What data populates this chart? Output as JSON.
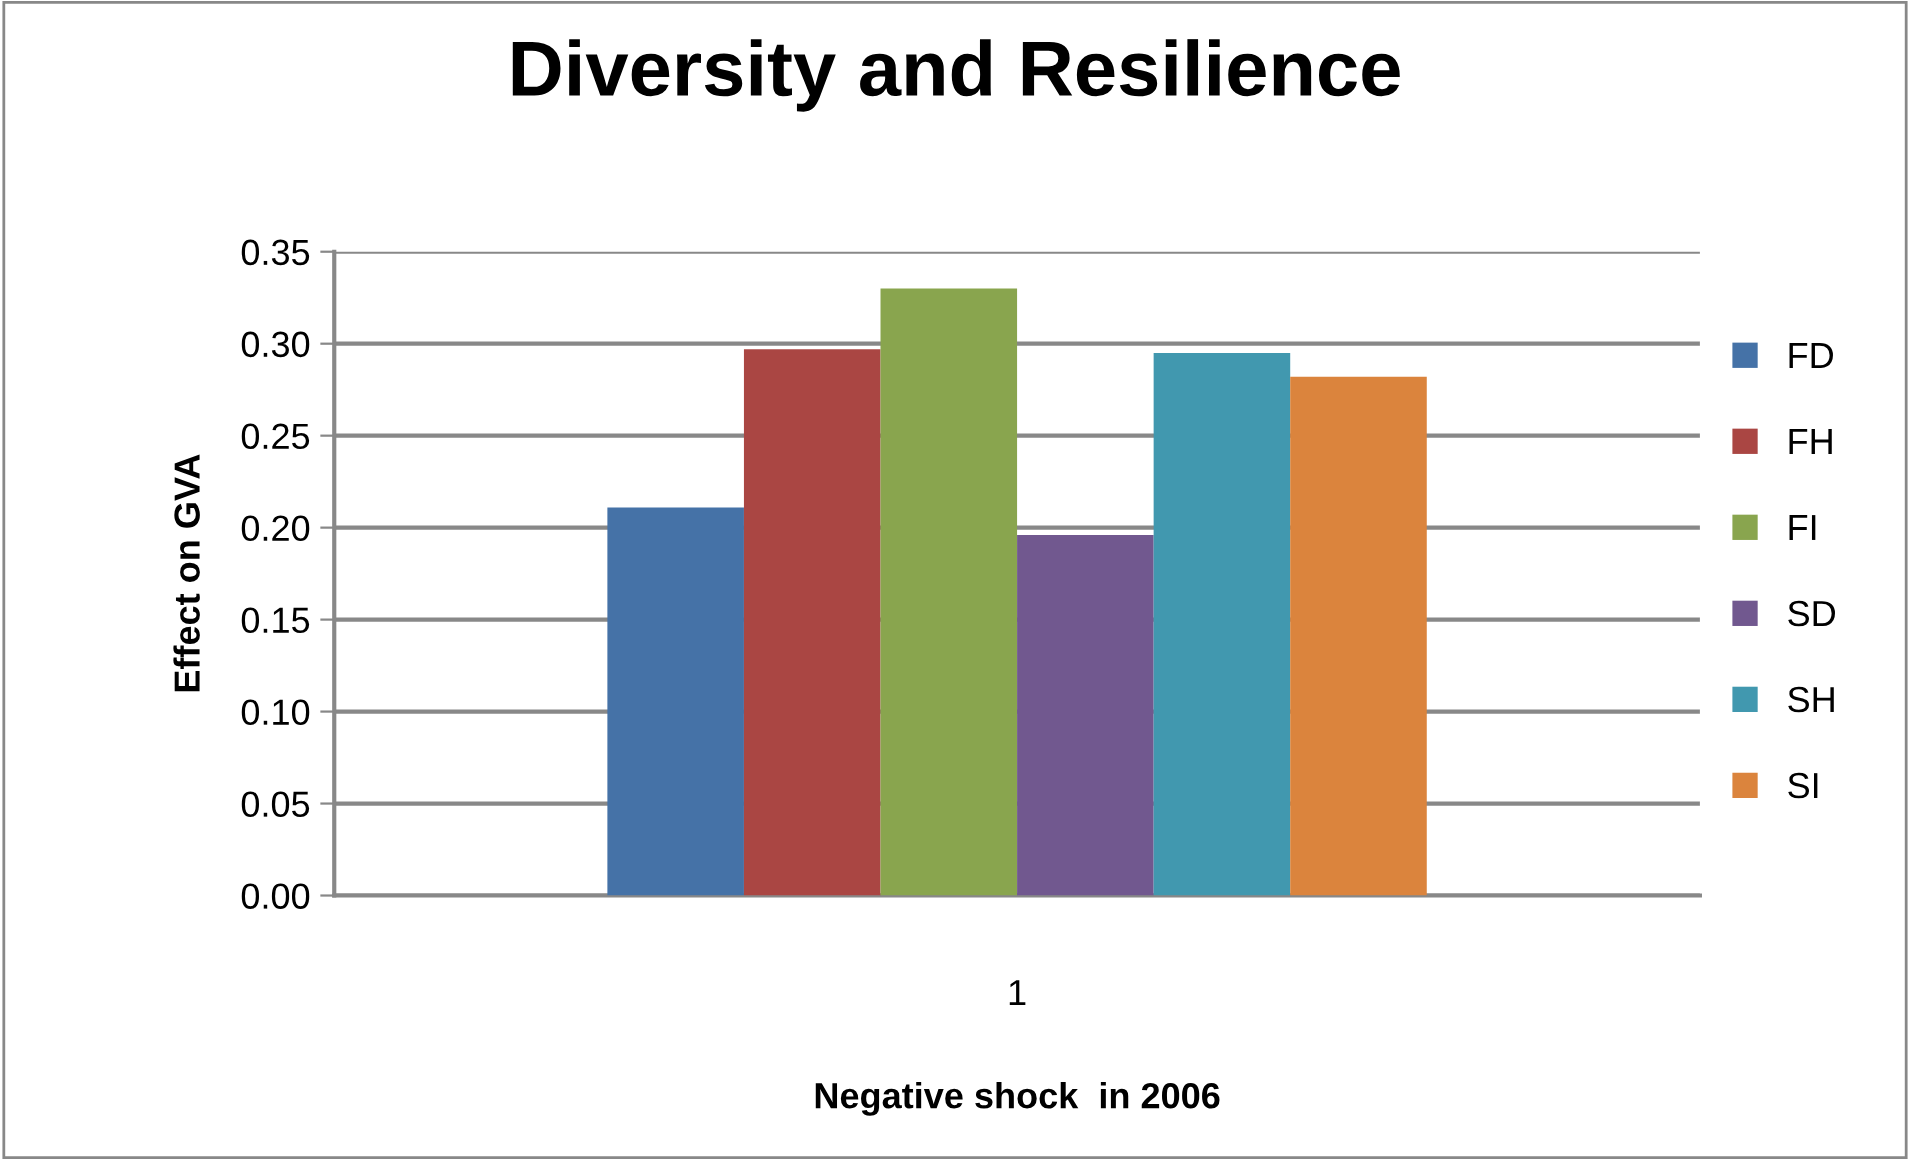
{
  "chart_data": {
    "type": "bar",
    "title": "Diversity and Resilience",
    "xlabel": "Negative shock  in 2006",
    "ylabel": "Effect on GVA",
    "categories": [
      "1"
    ],
    "series": [
      {
        "name": "FD",
        "color": "#4572a7",
        "values": [
          0.211
        ]
      },
      {
        "name": "FH",
        "color": "#aa4643",
        "values": [
          0.297
        ]
      },
      {
        "name": "FI",
        "color": "#89a54e",
        "values": [
          0.33
        ]
      },
      {
        "name": "SD",
        "color": "#71588f",
        "values": [
          0.196
        ]
      },
      {
        "name": "SH",
        "color": "#4198af",
        "values": [
          0.295
        ]
      },
      {
        "name": "SI",
        "color": "#db843d",
        "values": [
          0.282
        ]
      }
    ],
    "ylim": [
      0,
      0.35
    ],
    "yticks": [
      {
        "value": 0,
        "label": "0.00"
      },
      {
        "value": 0.05,
        "label": "0.05"
      },
      {
        "value": 0.1,
        "label": "0.10"
      },
      {
        "value": 0.15,
        "label": "0.15"
      },
      {
        "value": 0.2,
        "label": "0.20"
      },
      {
        "value": 0.25,
        "label": "0.25"
      },
      {
        "value": 0.3,
        "label": "0.30"
      },
      {
        "value": 0.35,
        "label": "0.35"
      }
    ],
    "grid": "y",
    "legend": "right"
  }
}
